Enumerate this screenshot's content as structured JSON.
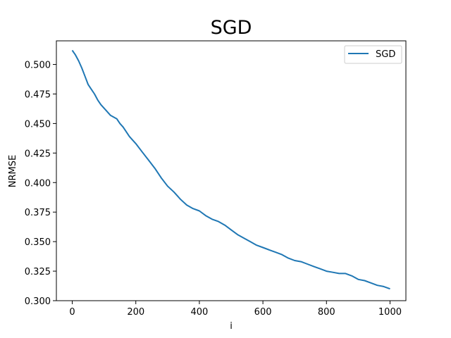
{
  "chart_data": {
    "type": "line",
    "title": "SGD",
    "xlabel": "i",
    "ylabel": "NRMSE",
    "xlim": [
      -50,
      1050
    ],
    "ylim": [
      0.3,
      0.52
    ],
    "xticks": [
      0,
      200,
      400,
      600,
      800,
      1000
    ],
    "yticks": [
      0.3,
      0.325,
      0.35,
      0.375,
      0.4,
      0.425,
      0.45,
      0.475,
      0.5
    ],
    "xtick_labels": [
      "0",
      "200",
      "400",
      "600",
      "800",
      "1000"
    ],
    "ytick_labels": [
      "0.300",
      "0.325",
      "0.350",
      "0.375",
      "0.400",
      "0.425",
      "0.450",
      "0.475",
      "0.500"
    ],
    "grid": false,
    "legend_position": "upper right",
    "series": [
      {
        "name": "SGD",
        "color": "#1f77b4",
        "x": [
          0,
          10,
          20,
          30,
          40,
          50,
          60,
          70,
          80,
          90,
          100,
          120,
          140,
          150,
          160,
          170,
          180,
          200,
          220,
          240,
          260,
          280,
          300,
          320,
          340,
          360,
          380,
          400,
          420,
          440,
          460,
          480,
          500,
          520,
          540,
          560,
          580,
          600,
          620,
          640,
          660,
          680,
          700,
          720,
          740,
          760,
          780,
          800,
          820,
          840,
          860,
          880,
          900,
          920,
          940,
          960,
          980,
          1000
        ],
        "y": [
          0.512,
          0.508,
          0.503,
          0.497,
          0.49,
          0.483,
          0.479,
          0.475,
          0.47,
          0.466,
          0.463,
          0.457,
          0.454,
          0.45,
          0.447,
          0.443,
          0.439,
          0.433,
          0.426,
          0.419,
          0.412,
          0.404,
          0.397,
          0.392,
          0.386,
          0.381,
          0.378,
          0.376,
          0.372,
          0.369,
          0.367,
          0.364,
          0.36,
          0.356,
          0.353,
          0.35,
          0.347,
          0.345,
          0.343,
          0.341,
          0.339,
          0.336,
          0.334,
          0.333,
          0.331,
          0.329,
          0.327,
          0.325,
          0.324,
          0.323,
          0.323,
          0.321,
          0.318,
          0.317,
          0.315,
          0.313,
          0.312,
          0.31
        ]
      }
    ]
  }
}
